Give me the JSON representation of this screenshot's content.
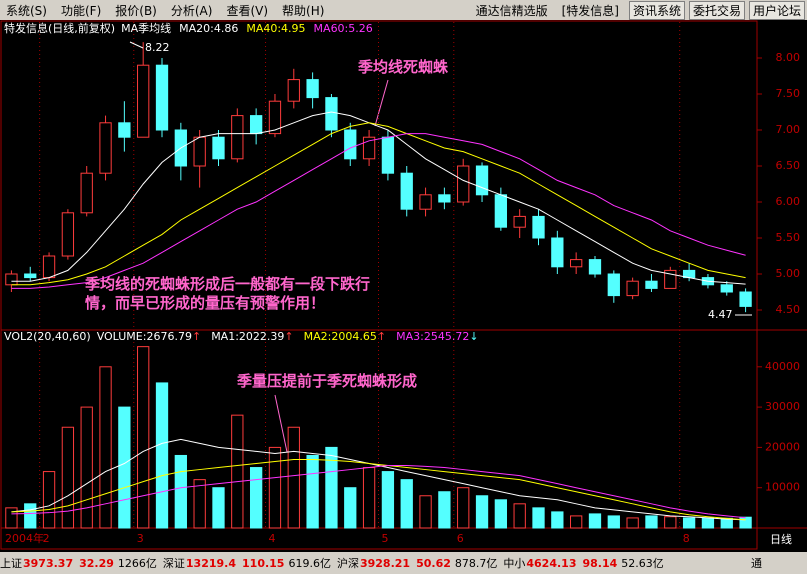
{
  "menu": [
    "系统(S)",
    "功能(F)",
    "报价(B)",
    "分析(A)",
    "查看(V)",
    "帮助(H)"
  ],
  "brand": "通达信精选版",
  "stock_tag": "[特发信息]",
  "buttons": [
    "资讯系统",
    "委托交易",
    "用户论坛"
  ],
  "chart_data": [
    {
      "type": "candlestick",
      "title": "特发信息(日线,前复权)",
      "subtitle": "MA季均线",
      "up_color": "#ff3c3c",
      "down_color": "#54ffff",
      "categories": [
        "2004年",
        null,
        "2",
        null,
        null,
        null,
        null,
        "3",
        null,
        null,
        null,
        null,
        null,
        null,
        "4",
        null,
        null,
        null,
        null,
        null,
        "5",
        null,
        null,
        null,
        "6",
        null,
        null,
        null,
        null,
        null,
        null,
        null,
        null,
        null,
        null,
        null,
        "8",
        null,
        null,
        null
      ],
      "candles": [
        [
          4.85,
          5.05,
          4.75,
          5.0
        ],
        [
          5.0,
          5.1,
          4.9,
          4.95
        ],
        [
          4.95,
          5.3,
          4.9,
          5.25
        ],
        [
          5.25,
          5.9,
          5.2,
          5.85
        ],
        [
          5.85,
          6.5,
          5.8,
          6.4
        ],
        [
          6.4,
          7.2,
          6.3,
          7.1
        ],
        [
          7.1,
          7.4,
          6.7,
          6.9
        ],
        [
          6.9,
          8.22,
          6.9,
          7.9
        ],
        [
          7.9,
          8.0,
          6.9,
          7.0
        ],
        [
          7.0,
          7.1,
          6.3,
          6.5
        ],
        [
          6.5,
          7.0,
          6.2,
          6.9
        ],
        [
          6.9,
          7.0,
          6.5,
          6.6
        ],
        [
          6.6,
          7.3,
          6.55,
          7.2
        ],
        [
          7.2,
          7.3,
          6.8,
          6.95
        ],
        [
          6.95,
          7.5,
          6.9,
          7.4
        ],
        [
          7.4,
          7.85,
          7.3,
          7.7
        ],
        [
          7.7,
          7.8,
          7.3,
          7.45
        ],
        [
          7.45,
          7.5,
          6.9,
          7.0
        ],
        [
          7.0,
          7.1,
          6.5,
          6.6
        ],
        [
          6.6,
          7.0,
          6.5,
          6.9
        ],
        [
          6.9,
          7.0,
          6.3,
          6.4
        ],
        [
          6.4,
          6.5,
          5.8,
          5.9
        ],
        [
          5.9,
          6.2,
          5.8,
          6.1
        ],
        [
          6.1,
          6.2,
          5.9,
          6.0
        ],
        [
          6.0,
          6.6,
          5.95,
          6.5
        ],
        [
          6.5,
          6.55,
          6.0,
          6.1
        ],
        [
          6.1,
          6.2,
          5.6,
          5.65
        ],
        [
          5.65,
          5.9,
          5.5,
          5.8
        ],
        [
          5.8,
          5.9,
          5.4,
          5.5
        ],
        [
          5.5,
          5.6,
          5.0,
          5.1
        ],
        [
          5.1,
          5.3,
          5.0,
          5.2
        ],
        [
          5.2,
          5.25,
          4.95,
          5.0
        ],
        [
          5.0,
          5.05,
          4.6,
          4.7
        ],
        [
          4.7,
          4.95,
          4.65,
          4.9
        ],
        [
          4.9,
          5.0,
          4.75,
          4.8
        ],
        [
          4.8,
          5.1,
          4.8,
          5.05
        ],
        [
          5.05,
          5.15,
          4.9,
          4.95
        ],
        [
          4.95,
          5.0,
          4.8,
          4.85
        ],
        [
          4.85,
          4.9,
          4.7,
          4.75
        ],
        [
          4.75,
          4.8,
          4.47,
          4.55
        ]
      ],
      "series": [
        {
          "name": "MA20:",
          "color": "#ffffff",
          "values": [
            4.9,
            4.9,
            4.95,
            5.05,
            5.3,
            5.6,
            5.9,
            6.25,
            6.55,
            6.75,
            6.9,
            6.95,
            6.95,
            6.95,
            7.0,
            7.1,
            7.2,
            7.25,
            7.2,
            7.1,
            7.0,
            6.8,
            6.6,
            6.45,
            6.3,
            6.2,
            6.1,
            6.0,
            5.9,
            5.75,
            5.6,
            5.45,
            5.3,
            5.15,
            5.05,
            5.0,
            4.95,
            4.9,
            4.88,
            4.86
          ]
        },
        {
          "name": "MA40:",
          "color": "#ffff00",
          "values": [
            4.85,
            4.85,
            4.88,
            4.92,
            5.0,
            5.1,
            5.25,
            5.4,
            5.55,
            5.75,
            5.9,
            6.05,
            6.2,
            6.35,
            6.5,
            6.65,
            6.8,
            6.95,
            7.05,
            7.1,
            7.05,
            6.95,
            6.85,
            6.75,
            6.7,
            6.6,
            6.5,
            6.4,
            6.25,
            6.1,
            5.95,
            5.8,
            5.65,
            5.5,
            5.35,
            5.25,
            5.15,
            5.05,
            5.0,
            4.95
          ]
        },
        {
          "name": "MA60:",
          "color": "#ff33ff",
          "values": [
            4.8,
            4.8,
            4.82,
            4.85,
            4.88,
            4.95,
            5.05,
            5.15,
            5.3,
            5.45,
            5.6,
            5.75,
            5.9,
            6.0,
            6.15,
            6.3,
            6.45,
            6.6,
            6.75,
            6.85,
            6.9,
            6.95,
            6.95,
            6.9,
            6.85,
            6.8,
            6.7,
            6.6,
            6.45,
            6.3,
            6.2,
            6.1,
            5.95,
            5.85,
            5.75,
            5.6,
            5.5,
            5.4,
            5.33,
            5.26
          ]
        }
      ],
      "ylim": [
        4.25,
        8.5
      ],
      "yticks": [
        {
          "value": 4.5,
          "label": "4.50"
        },
        {
          "value": 5,
          "label": "5.00"
        },
        {
          "value": 5.5,
          "label": "5.50"
        },
        {
          "value": 6,
          "label": "6.00"
        },
        {
          "value": 6.5,
          "label": "6.50"
        },
        {
          "value": 7,
          "label": "7.00"
        },
        {
          "value": 7.5,
          "label": "7.50"
        },
        {
          "value": 8,
          "label": "8.00"
        }
      ],
      "annotations": [
        "8.22",
        "4.47",
        "季均线死蜘蛛",
        "季均线的死蜘蛛形成后一般都有一段下跌行",
        "情，而早已形成的量压有预警作用！"
      ]
    },
    {
      "type": "bar",
      "title": "VOL2(20,40,60)",
      "volume_name": "VOLUME:",
      "volume_arrow": "↑",
      "values": [
        5000,
        6000,
        14000,
        25000,
        30000,
        40000,
        30000,
        45000,
        36000,
        18000,
        12000,
        10000,
        28000,
        15000,
        20000,
        25000,
        18000,
        20000,
        10000,
        15000,
        14000,
        12000,
        8000,
        9000,
        10000,
        8000,
        7000,
        6000,
        5000,
        4000,
        3000,
        3500,
        3000,
        2500,
        3000,
        2800,
        2500,
        2500,
        2400,
        2676.79
      ],
      "series": [
        {
          "name": "MA1:",
          "arrow": "↑",
          "color": "#ffffff",
          "values": [
            4000,
            4500,
            5500,
            8000,
            11000,
            14000,
            16000,
            19000,
            21000,
            22000,
            21000,
            20000,
            19500,
            19000,
            18500,
            19000,
            18500,
            18000,
            17000,
            16000,
            15000,
            14000,
            13000,
            12000,
            11000,
            10000,
            9000,
            8000,
            7500,
            7000,
            6000,
            5000,
            4500,
            4000,
            3500,
            3000,
            2800,
            2500,
            2200,
            2022.39
          ]
        },
        {
          "name": "MA2:",
          "arrow": "↑",
          "color": "#ffff00",
          "values": [
            4000,
            4200,
            4600,
            5500,
            7000,
            8500,
            10000,
            11500,
            13000,
            14000,
            14500,
            15000,
            15500,
            16000,
            16500,
            17000,
            17000,
            16800,
            16500,
            16000,
            15500,
            15000,
            14500,
            14000,
            13500,
            13000,
            12500,
            12000,
            11000,
            10000,
            9000,
            8000,
            7000,
            6000,
            5000,
            4000,
            3300,
            2800,
            2400,
            2004.65
          ]
        },
        {
          "name": "MA3:",
          "arrow": "↓",
          "color": "#ff33ff",
          "values": [
            3500,
            3600,
            3800,
            4200,
            5000,
            6000,
            7000,
            8000,
            9000,
            10000,
            10500,
            11000,
            11500,
            12000,
            12500,
            13000,
            13500,
            14000,
            14500,
            15000,
            15500,
            15500,
            15300,
            15000,
            14500,
            14000,
            13500,
            13000,
            12000,
            11000,
            10000,
            9000,
            8000,
            7000,
            6000,
            5000,
            4200,
            3500,
            3000,
            2545.72
          ]
        }
      ],
      "ylim": [
        0,
        46650
      ],
      "yticks": [
        10000,
        20000,
        30000,
        40000
      ],
      "annotations": [
        "季量压提前于季死蜘蛛形成"
      ],
      "period": "日线"
    }
  ],
  "status": [
    {
      "name": "上证",
      "value": "3973.37",
      "change": "32.29",
      "amount": "1266亿"
    },
    {
      "name": "深证",
      "value": "13219.4",
      "change": "110.15",
      "amount": "619.6亿"
    },
    {
      "name": "沪深",
      "value": "3928.21",
      "change": "50.62",
      "amount": "878.7亿"
    },
    {
      "name": "中小",
      "value": "4624.13",
      "change": "98.14",
      "amount": "52.63亿"
    }
  ],
  "corner": "通"
}
